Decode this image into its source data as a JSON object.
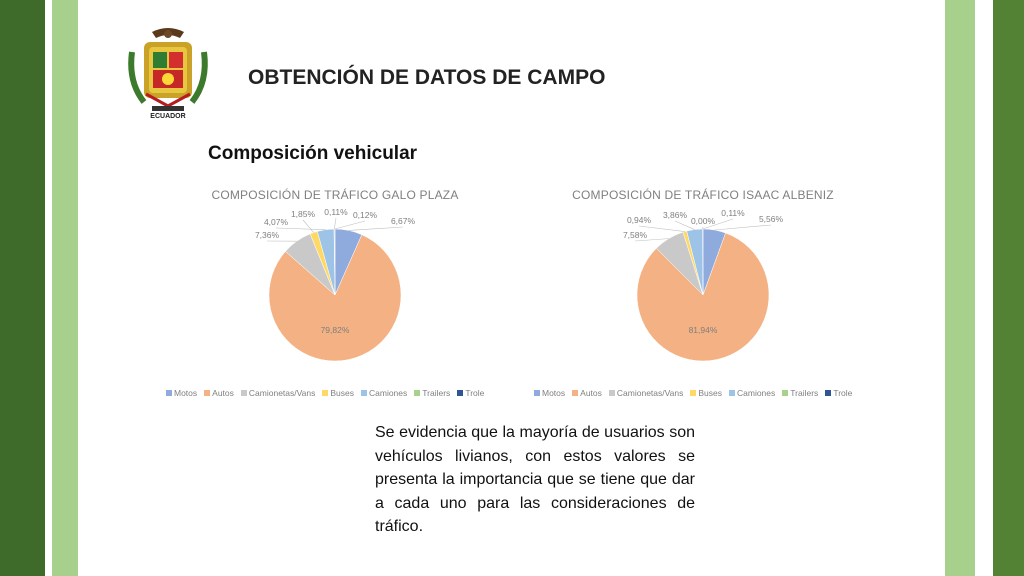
{
  "slide": {
    "title": "OBTENCIÓN DE DATOS DE CAMPO",
    "subtitle": "Composición vehicular",
    "note": "Se evidencia que la mayoría de usuarios son vehículos livianos, con estos valores se presenta la importancia que se tiene que dar a cada uno para las consideraciones de tráfico.",
    "logo_text": "ECUADOR"
  },
  "colors": {
    "band_dark": "#3f6b2a",
    "band_light": "#a8d08d",
    "band_right": "#548235"
  },
  "chart_data": [
    {
      "type": "pie",
      "title": "COMPOSICIÓN DE TRÁFICO GALO PLAZA",
      "legend_position": "bottom",
      "categories": [
        "Motos",
        "Autos",
        "Camionetas/Vans",
        "Buses",
        "Camiones",
        "Trailers",
        "Trole"
      ],
      "values": [
        6.67,
        79.82,
        7.36,
        1.85,
        4.07,
        0.11,
        0.12
      ],
      "labels": [
        "6,67%",
        "79,82%",
        "7,36%",
        "1,85%",
        "4,07%",
        "0,11%",
        "0,12%"
      ],
      "colors": [
        "#8faadc",
        "#f4b183",
        "#c9c9c9",
        "#ffd966",
        "#9dc3e6",
        "#a9d18e",
        "#2f5597"
      ]
    },
    {
      "type": "pie",
      "title": "COMPOSICIÓN DE TRÁFICO ISAAC ALBENIZ",
      "legend_position": "bottom",
      "categories": [
        "Motos",
        "Autos",
        "Camionetas/Vans",
        "Buses",
        "Camiones",
        "Trailers",
        "Trole"
      ],
      "values": [
        5.56,
        81.94,
        7.58,
        0.94,
        3.86,
        0.0,
        0.11
      ],
      "labels": [
        "5,56%",
        "81,94%",
        "7,58%",
        "0,94%",
        "3,86%",
        "0,00%",
        "0,11%"
      ],
      "colors": [
        "#8faadc",
        "#f4b183",
        "#c9c9c9",
        "#ffd966",
        "#9dc3e6",
        "#a9d18e",
        "#2f5597"
      ]
    }
  ]
}
